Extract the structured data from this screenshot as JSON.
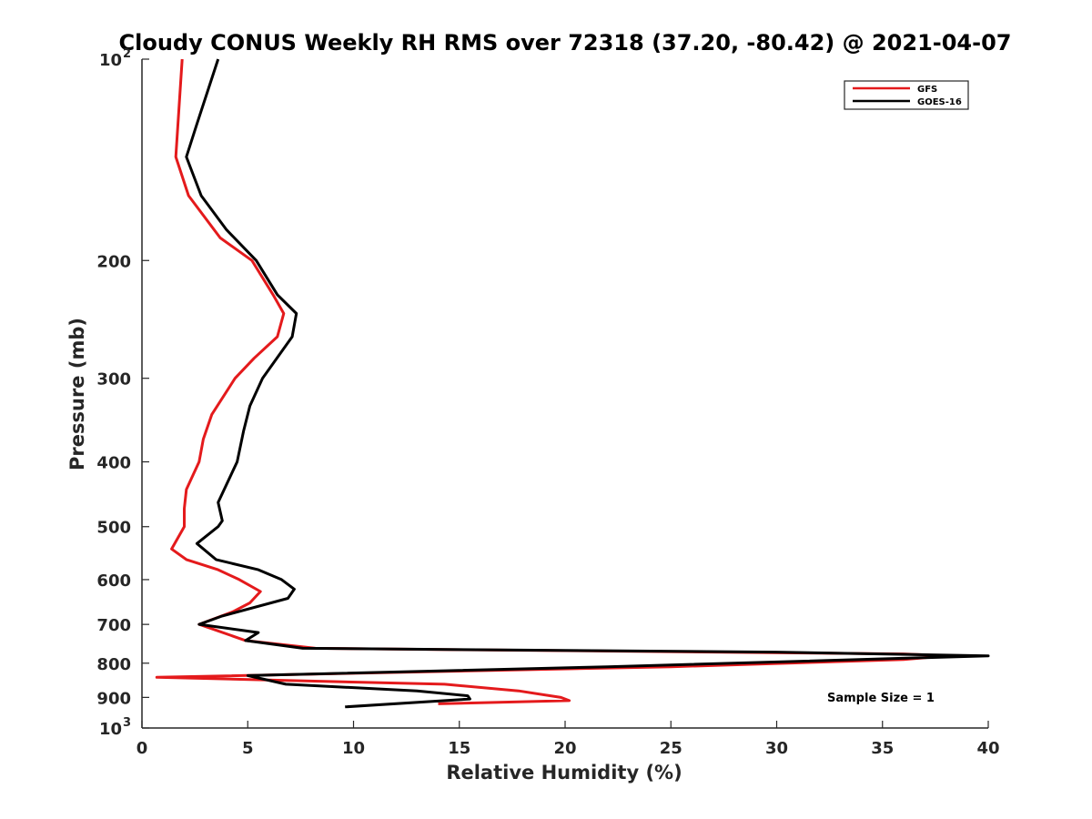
{
  "chart_data": {
    "type": "line",
    "title": "Cloudy CONUS Weekly RH RMS over 72318 (37.20, -80.42) @ 2021-04-07",
    "xlabel": "Relative Humidity (%)",
    "ylabel": "Pressure (mb)",
    "xlim": [
      0,
      40
    ],
    "ylim": [
      100,
      1000
    ],
    "y_scale": "log",
    "y_reversed": true,
    "grid": false,
    "legend_position": "top-right",
    "x_ticks": [
      "0",
      "5",
      "10",
      "15",
      "20",
      "25",
      "30",
      "35",
      "40"
    ],
    "y_ticks": [
      {
        "value": 100,
        "base": "10",
        "exp": "2"
      },
      {
        "value": 200,
        "label": "200"
      },
      {
        "value": 300,
        "label": "300"
      },
      {
        "value": 400,
        "label": "400"
      },
      {
        "value": 500,
        "label": "500"
      },
      {
        "value": 600,
        "label": "600"
      },
      {
        "value": 700,
        "label": "700"
      },
      {
        "value": 800,
        "label": "800"
      },
      {
        "value": 900,
        "label": "900"
      },
      {
        "value": 1000,
        "base": "10",
        "exp": "3"
      }
    ],
    "annotation": "Sample Size = 1",
    "series": [
      {
        "name": "GFS",
        "color": "#e41a1c",
        "points": [
          [
            1.9,
            100
          ],
          [
            1.6,
            140
          ],
          [
            2.2,
            160
          ],
          [
            3.7,
            185
          ],
          [
            5.2,
            200
          ],
          [
            6.2,
            225
          ],
          [
            6.7,
            240
          ],
          [
            6.4,
            260
          ],
          [
            5.3,
            280
          ],
          [
            4.4,
            300
          ],
          [
            3.3,
            340
          ],
          [
            2.9,
            370
          ],
          [
            2.7,
            400
          ],
          [
            2.1,
            440
          ],
          [
            2.0,
            470
          ],
          [
            2.0,
            500
          ],
          [
            1.4,
            540
          ],
          [
            2.1,
            560
          ],
          [
            3.6,
            580
          ],
          [
            4.6,
            600
          ],
          [
            5.6,
            625
          ],
          [
            5.1,
            650
          ],
          [
            4.3,
            670
          ],
          [
            2.7,
            700
          ],
          [
            4.9,
            740
          ],
          [
            8.2,
            760
          ],
          [
            36,
            775
          ],
          [
            38,
            780
          ],
          [
            36,
            790
          ],
          [
            25,
            810
          ],
          [
            0.7,
            840
          ],
          [
            7.5,
            850
          ],
          [
            14.3,
            860
          ],
          [
            17.8,
            880
          ],
          [
            19.8,
            900
          ],
          [
            20.2,
            910
          ],
          [
            14.0,
            920
          ]
        ]
      },
      {
        "name": "GOES-16",
        "color": "#000000",
        "points": [
          [
            3.6,
            100
          ],
          [
            2.6,
            125
          ],
          [
            2.1,
            140
          ],
          [
            2.8,
            160
          ],
          [
            4.0,
            180
          ],
          [
            5.4,
            200
          ],
          [
            6.4,
            225
          ],
          [
            7.3,
            240
          ],
          [
            7.1,
            260
          ],
          [
            5.7,
            300
          ],
          [
            5.1,
            330
          ],
          [
            4.8,
            360
          ],
          [
            4.5,
            400
          ],
          [
            3.6,
            460
          ],
          [
            3.8,
            490
          ],
          [
            3.6,
            500
          ],
          [
            2.6,
            530
          ],
          [
            3.5,
            560
          ],
          [
            5.5,
            580
          ],
          [
            6.6,
            600
          ],
          [
            7.2,
            620
          ],
          [
            6.9,
            640
          ],
          [
            3.8,
            680
          ],
          [
            2.7,
            700
          ],
          [
            5.5,
            720
          ],
          [
            4.9,
            740
          ],
          [
            7.6,
            760
          ],
          [
            30,
            770
          ],
          [
            40,
            780
          ],
          [
            22,
            810
          ],
          [
            5.0,
            835
          ],
          [
            6.8,
            860
          ],
          [
            13.0,
            880
          ],
          [
            15.4,
            895
          ],
          [
            15.5,
            905
          ],
          [
            9.6,
            930
          ]
        ]
      }
    ]
  }
}
